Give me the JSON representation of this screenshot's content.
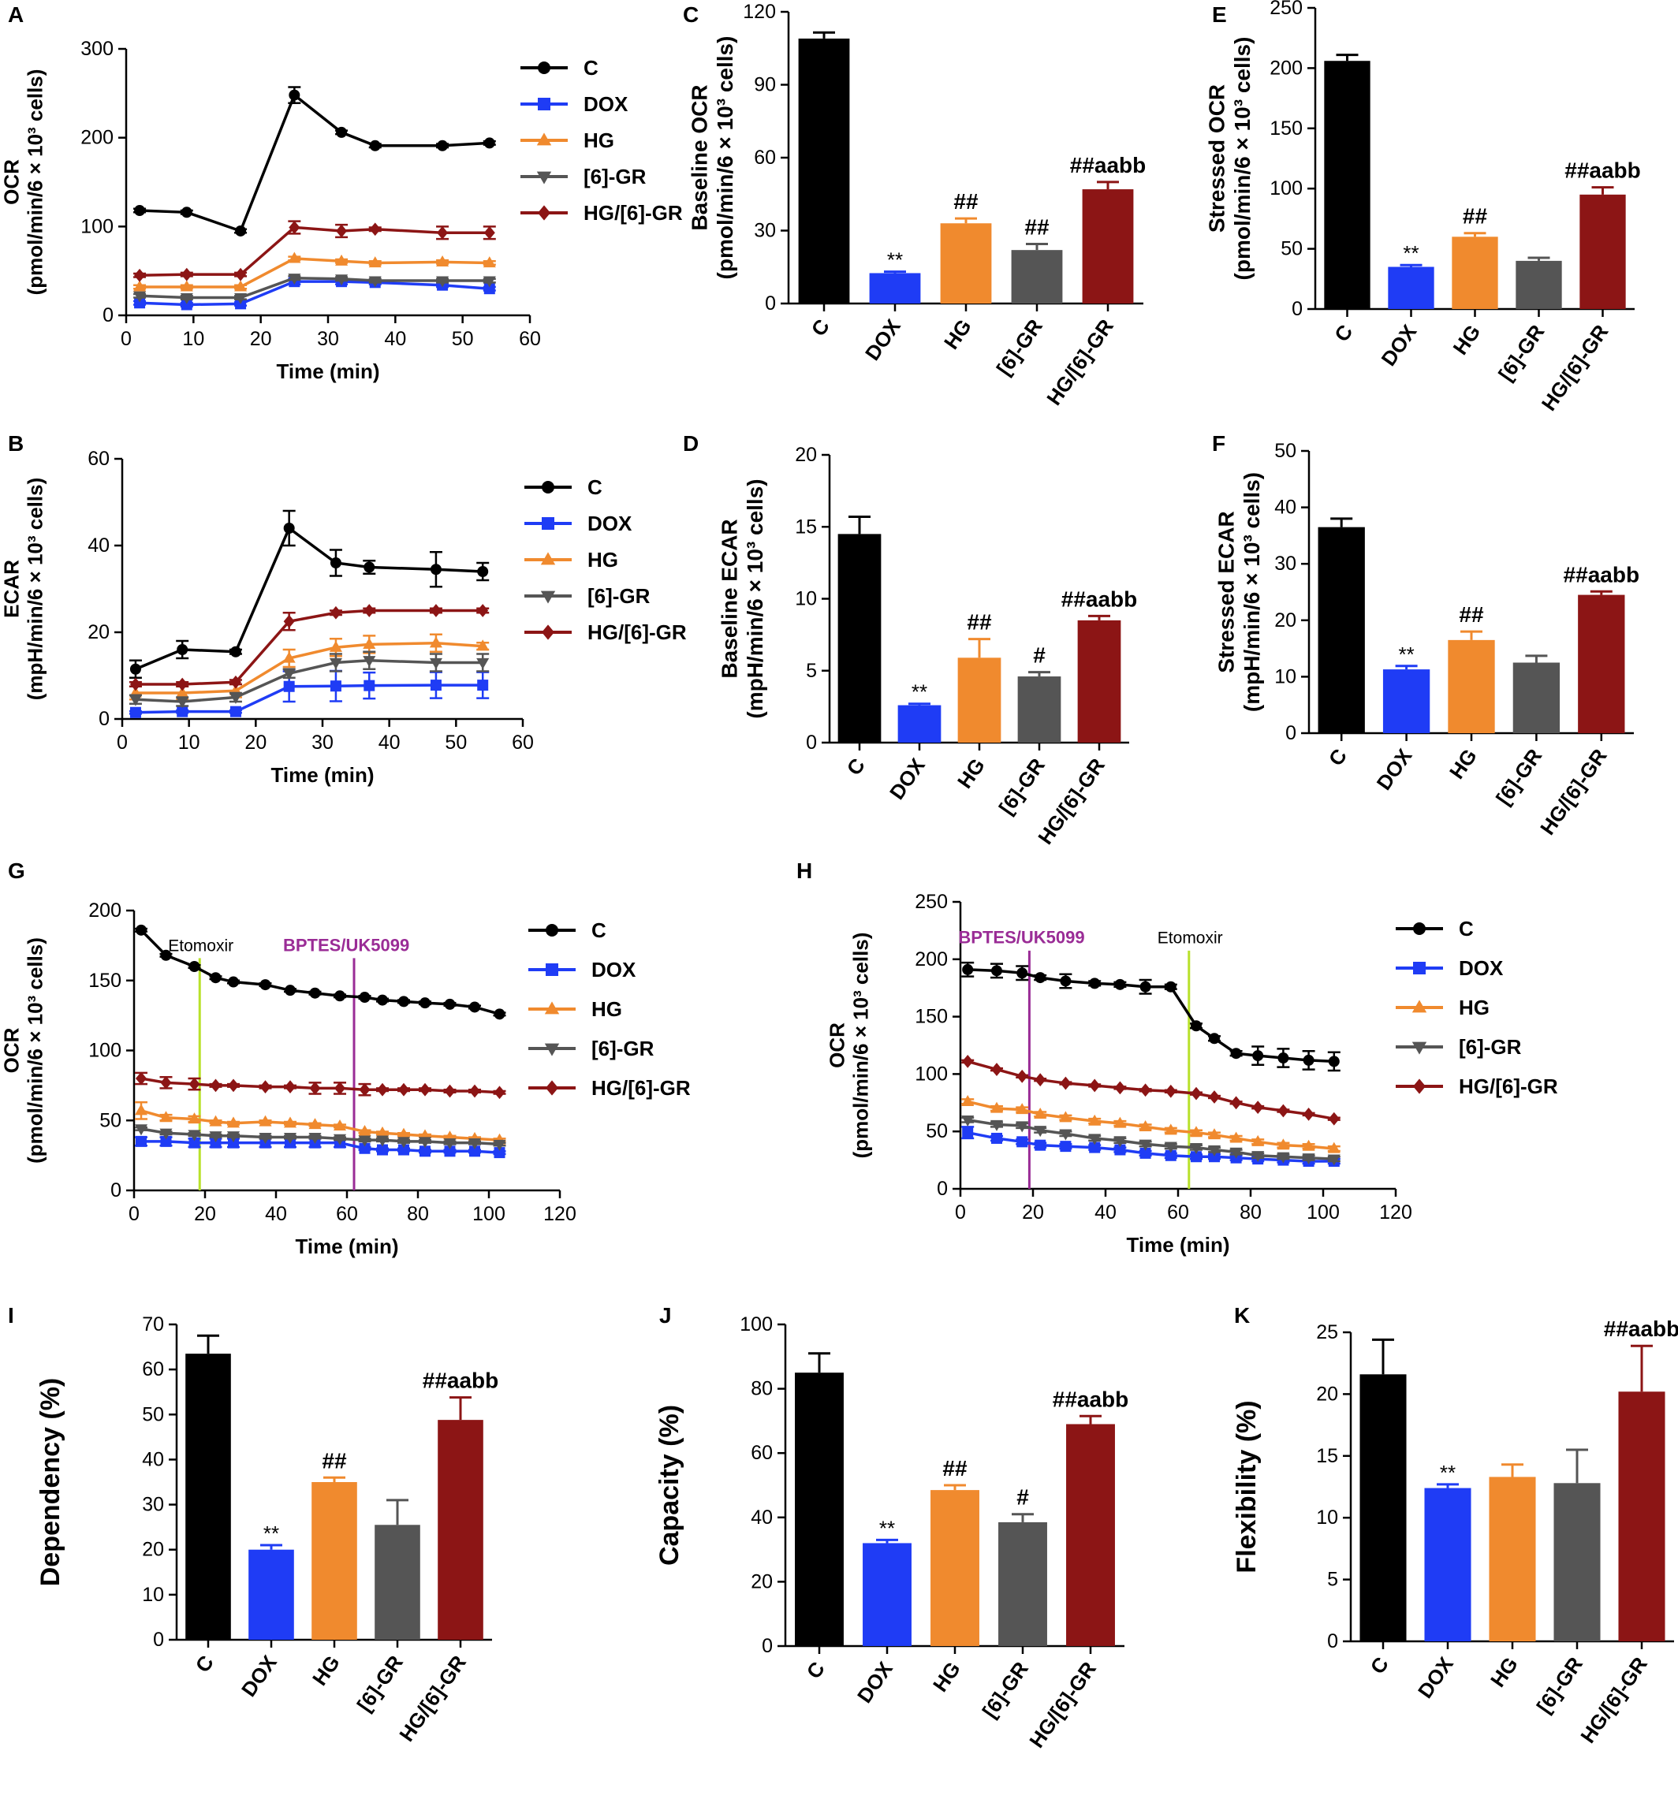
{
  "colors": {
    "C": "#000000",
    "DOX": "#1f3cf5",
    "HG": "#f08a2e",
    "[6]-GR": "#555555",
    "HG/[6]-GR": "#8c1515",
    "etomoxir_line": "#b8e12a",
    "bptes_line": "#9a2c96"
  },
  "chart_data": [
    {
      "panel": "A",
      "type": "line",
      "ylabel_lines": [
        "OCR",
        "(pmol/min/6 × 10³ cells)"
      ],
      "xlabel": "Time (min)",
      "xlim": [
        0,
        60
      ],
      "xticks": [
        0,
        10,
        20,
        30,
        40,
        50,
        60
      ],
      "ylim": [
        0,
        300
      ],
      "yticks": [
        0,
        100,
        200,
        300
      ],
      "x": [
        2,
        9,
        17,
        25,
        32,
        37,
        47,
        54
      ],
      "series": [
        {
          "name": "C",
          "marker": "circle",
          "values": [
            118,
            116,
            95,
            248,
            206,
            191,
            191,
            194
          ],
          "err": [
            2,
            2,
            2,
            9,
            2,
            2,
            2,
            2
          ]
        },
        {
          "name": "DOX",
          "marker": "square",
          "values": [
            14,
            12,
            13,
            38,
            38,
            37,
            34,
            30
          ],
          "err": [
            2,
            2,
            2,
            3,
            3,
            2,
            2,
            2
          ]
        },
        {
          "name": "HG",
          "marker": "triangle-up",
          "values": [
            32,
            32,
            32,
            64,
            61,
            59,
            60,
            59
          ],
          "err": [
            2,
            2,
            2,
            2,
            2,
            2,
            2,
            2
          ]
        },
        {
          "name": "[6]-GR",
          "marker": "triangle-down",
          "values": [
            22,
            20,
            20,
            42,
            41,
            39,
            39,
            39
          ],
          "err": [
            2,
            2,
            2,
            2,
            2,
            2,
            2,
            2
          ]
        },
        {
          "name": "HG/[6]-GR",
          "marker": "diamond",
          "values": [
            45,
            46,
            46,
            99,
            95,
            97,
            93,
            93
          ],
          "err": [
            2,
            2,
            2,
            7,
            7,
            2,
            7,
            7
          ]
        }
      ]
    },
    {
      "panel": "B",
      "type": "line",
      "ylabel_lines": [
        "ECAR",
        "(mpH/min/6 × 10³ cells)"
      ],
      "xlabel": "Time (min)",
      "xlim": [
        0,
        60
      ],
      "xticks": [
        0,
        10,
        20,
        30,
        40,
        50,
        60
      ],
      "ylim": [
        0,
        60
      ],
      "yticks": [
        0,
        20,
        40,
        60
      ],
      "x": [
        2,
        9,
        17,
        25,
        32,
        37,
        47,
        54
      ],
      "series": [
        {
          "name": "C",
          "marker": "circle",
          "values": [
            11.5,
            16,
            15.5,
            44,
            36,
            35,
            34.5,
            34
          ],
          "err": [
            2,
            2,
            0.5,
            4,
            3,
            1.5,
            4,
            2
          ]
        },
        {
          "name": "DOX",
          "marker": "square",
          "values": [
            1.5,
            1.7,
            1.7,
            7.5,
            7.6,
            7.7,
            7.8,
            7.8
          ],
          "err": [
            0.3,
            0.3,
            0.3,
            3.5,
            3.5,
            3,
            3,
            3
          ]
        },
        {
          "name": "HG",
          "marker": "triangle-up",
          "values": [
            6,
            6,
            6.5,
            14,
            16.5,
            17.2,
            17.5,
            16.8
          ],
          "err": [
            1.5,
            1.5,
            1.5,
            2,
            2,
            2,
            2,
            0.8
          ]
        },
        {
          "name": "[6]-GR",
          "marker": "triangle-down",
          "values": [
            4.5,
            4,
            5,
            10.5,
            13,
            13.5,
            13,
            13
          ],
          "err": [
            1,
            1,
            1,
            1,
            2,
            2,
            2,
            2
          ]
        },
        {
          "name": "HG/[6]-GR",
          "marker": "diamond",
          "values": [
            8,
            8,
            8.5,
            22.5,
            24.5,
            25,
            25,
            25
          ],
          "err": [
            0.5,
            0.5,
            0.5,
            2,
            0.5,
            0.5,
            0.5,
            0.5
          ]
        }
      ]
    },
    {
      "panel": "C",
      "type": "bar",
      "ylabel_lines": [
        "Baseline OCR",
        "(pmol/min/6 × 10³ cells)"
      ],
      "categories": [
        "C",
        "DOX",
        "HG",
        "[6]-GR",
        "HG/[6]-GR"
      ],
      "values": [
        109,
        12.5,
        33,
        22,
        47
      ],
      "err": [
        2.5,
        0.6,
        2,
        2.5,
        3
      ],
      "annotations": [
        "",
        "**",
        "##",
        "##",
        "##aabb"
      ],
      "ylim": [
        0,
        120
      ],
      "yticks": [
        0,
        30,
        60,
        90,
        120
      ]
    },
    {
      "panel": "D",
      "type": "bar",
      "ylabel_lines": [
        "Baseline ECAR",
        "(mpH/min/6 × 10³ cells)"
      ],
      "categories": [
        "C",
        "DOX",
        "HG",
        "[6]-GR",
        "HG/[6]-GR"
      ],
      "values": [
        14.5,
        2.6,
        5.9,
        4.6,
        8.5
      ],
      "err": [
        1.2,
        0.1,
        1.3,
        0.3,
        0.3
      ],
      "annotations": [
        "",
        "**",
        "##",
        "#",
        "##aabb"
      ],
      "ylim": [
        0,
        20
      ],
      "yticks": [
        0,
        5,
        10,
        15,
        20
      ]
    },
    {
      "panel": "E",
      "type": "bar",
      "ylabel_lines": [
        "Stressed OCR",
        "(pmol/min/6 × 10³ cells)"
      ],
      "categories": [
        "C",
        "DOX",
        "HG",
        "[6]-GR",
        "HG/[6]-GR"
      ],
      "values": [
        206,
        35,
        60,
        40,
        95
      ],
      "err": [
        5,
        1.5,
        3,
        2.5,
        6
      ],
      "annotations": [
        "",
        "**",
        "##",
        "",
        "##aabb"
      ],
      "ylim": [
        0,
        250
      ],
      "yticks": [
        0,
        50,
        100,
        150,
        200,
        250
      ]
    },
    {
      "panel": "F",
      "type": "bar",
      "ylabel_lines": [
        "Stressed ECAR",
        "(mpH/min/6 × 10³ cells)"
      ],
      "categories": [
        "C",
        "DOX",
        "HG",
        "[6]-GR",
        "HG/[6]-GR"
      ],
      "values": [
        36.5,
        11.3,
        16.5,
        12.5,
        24.5
      ],
      "err": [
        1.5,
        0.6,
        1.5,
        1.2,
        0.6
      ],
      "annotations": [
        "",
        "**",
        "##",
        "",
        "##aabb"
      ],
      "ylim": [
        0,
        50
      ],
      "yticks": [
        0,
        10,
        20,
        30,
        40,
        50
      ]
    },
    {
      "panel": "G",
      "type": "line",
      "ylabel_lines": [
        "OCR",
        "(pmol/min/6 × 10³ cells)"
      ],
      "xlabel": "Time (min)",
      "xlim": [
        0,
        120
      ],
      "xticks": [
        0,
        20,
        40,
        60,
        80,
        100,
        120
      ],
      "ylim": [
        0,
        200
      ],
      "yticks": [
        0,
        50,
        100,
        150,
        200
      ],
      "x": [
        2,
        9,
        17,
        23,
        28,
        37,
        44,
        51,
        58,
        65,
        70,
        76,
        82,
        89,
        96,
        103
      ],
      "vlines": [
        {
          "x": 18.5,
          "label": "Etomoxir",
          "color_key": "etomoxir_line"
        },
        {
          "x": 62,
          "label": "BPTES/UK5099",
          "color_key": "bptes_line"
        }
      ],
      "series": [
        {
          "name": "C",
          "marker": "circle",
          "values": [
            186,
            168,
            160,
            152,
            149,
            147,
            143,
            141,
            139,
            138,
            136,
            135,
            134,
            133,
            131,
            126
          ],
          "err": [
            1,
            1,
            1,
            1,
            1,
            1,
            1,
            1,
            1,
            1,
            1,
            1,
            1,
            1,
            1,
            1
          ]
        },
        {
          "name": "DOX",
          "marker": "square",
          "values": [
            35,
            35,
            34,
            34,
            34,
            34,
            34,
            34,
            34,
            30,
            29,
            29,
            28,
            28,
            28,
            27
          ],
          "err": [
            3,
            3,
            3,
            3,
            3,
            3,
            3,
            3,
            3,
            1,
            1,
            1,
            1,
            1,
            1,
            1
          ]
        },
        {
          "name": "HG",
          "marker": "triangle-up",
          "values": [
            57,
            52,
            51,
            49,
            48,
            49,
            48,
            47,
            46,
            42,
            41,
            40,
            39,
            38,
            37,
            36
          ],
          "err": [
            6,
            2,
            2,
            1,
            1,
            1,
            1,
            1,
            1,
            1,
            1,
            1,
            1,
            1,
            1,
            1
          ]
        },
        {
          "name": "[6]-GR",
          "marker": "triangle-down",
          "values": [
            44,
            41,
            40,
            39,
            39,
            38,
            38,
            38,
            37,
            36,
            36,
            35,
            35,
            34,
            34,
            33
          ],
          "err": [
            1,
            1,
            1,
            1,
            1,
            1,
            1,
            1,
            1,
            1,
            1,
            1,
            1,
            1,
            1,
            1
          ]
        },
        {
          "name": "HG/[6]-GR",
          "marker": "diamond",
          "values": [
            80,
            77,
            76,
            75,
            75,
            74,
            74,
            73,
            73,
            72,
            72,
            72,
            72,
            71,
            71,
            70
          ],
          "err": [
            4,
            4,
            4,
            1,
            1,
            1,
            1,
            4,
            4,
            4,
            1,
            1,
            1,
            1,
            1,
            1
          ]
        }
      ]
    },
    {
      "panel": "H",
      "type": "line",
      "ylabel_lines": [
        "OCR",
        "(pmol/min/6 × 10³ cells)"
      ],
      "xlabel": "Time (min)",
      "xlim": [
        0,
        120
      ],
      "xticks": [
        0,
        20,
        40,
        60,
        80,
        100,
        120
      ],
      "ylim": [
        0,
        250
      ],
      "yticks": [
        0,
        50,
        100,
        150,
        200,
        250
      ],
      "x": [
        2,
        10,
        17,
        22,
        29,
        37,
        44,
        51,
        58,
        65,
        70,
        76,
        82,
        89,
        96,
        103
      ],
      "vlines": [
        {
          "x": 19,
          "label": "BPTES/UK5099",
          "color_key": "bptes_line"
        },
        {
          "x": 63,
          "label": "Etomoxir",
          "color_key": "etomoxir_line"
        }
      ],
      "series": [
        {
          "name": "C",
          "marker": "circle",
          "values": [
            191,
            190,
            188,
            184,
            181,
            179,
            178,
            176,
            176,
            142,
            131,
            118,
            116,
            114,
            112,
            111
          ],
          "err": [
            6,
            6,
            6,
            2,
            6,
            2,
            2,
            6,
            2,
            2,
            2,
            2,
            8,
            8,
            8,
            8
          ]
        },
        {
          "name": "DOX",
          "marker": "square",
          "values": [
            49,
            44,
            41,
            38,
            37,
            36,
            34,
            31,
            29,
            28,
            28,
            27,
            26,
            25,
            24,
            24
          ],
          "err": [
            5,
            2,
            2,
            2,
            2,
            2,
            2,
            2,
            2,
            2,
            2,
            2,
            2,
            2,
            2,
            2
          ]
        },
        {
          "name": "HG",
          "marker": "triangle-up",
          "values": [
            76,
            70,
            69,
            65,
            62,
            59,
            57,
            54,
            51,
            49,
            47,
            44,
            41,
            38,
            37,
            35
          ],
          "err": [
            2,
            2,
            2,
            2,
            2,
            2,
            2,
            2,
            2,
            2,
            2,
            2,
            2,
            2,
            2,
            2
          ]
        },
        {
          "name": "[6]-GR",
          "marker": "triangle-down",
          "values": [
            60,
            56,
            55,
            51,
            48,
            44,
            42,
            39,
            37,
            36,
            34,
            32,
            29,
            28,
            27,
            26
          ],
          "err": [
            2,
            2,
            2,
            2,
            2,
            2,
            2,
            2,
            2,
            2,
            2,
            2,
            2,
            2,
            2,
            2
          ]
        },
        {
          "name": "HG/[6]-GR",
          "marker": "diamond",
          "values": [
            111,
            104,
            98,
            95,
            92,
            90,
            88,
            86,
            85,
            83,
            80,
            75,
            71,
            68,
            65,
            61
          ],
          "err": [
            1,
            1,
            1,
            1,
            1,
            1,
            1,
            1,
            1,
            1,
            1,
            1,
            1,
            1,
            1,
            1
          ]
        }
      ]
    },
    {
      "panel": "I",
      "type": "bar",
      "ylabel_lines": [
        "Dependency (%)"
      ],
      "categories": [
        "C",
        "DOX",
        "HG",
        "[6]-GR",
        "HG/[6]-GR"
      ],
      "values": [
        63.5,
        20,
        35,
        25.5,
        48.8
      ],
      "err": [
        4,
        1,
        1,
        5.5,
        5
      ],
      "annotations": [
        "",
        "**",
        "##",
        "",
        "##aabb"
      ],
      "ylim": [
        0,
        70
      ],
      "yticks": [
        0,
        10,
        20,
        30,
        40,
        50,
        60,
        70
      ]
    },
    {
      "panel": "J",
      "type": "bar",
      "ylabel_lines": [
        "Capacity (%)"
      ],
      "categories": [
        "C",
        "DOX",
        "HG",
        "[6]-GR",
        "HG/[6]-GR"
      ],
      "values": [
        85,
        32,
        48.5,
        38.5,
        69
      ],
      "err": [
        6,
        1,
        1.5,
        2.5,
        2.5
      ],
      "annotations": [
        "",
        "**",
        "##",
        "#",
        "##aabb"
      ],
      "ylim": [
        0,
        100
      ],
      "yticks": [
        0,
        20,
        40,
        60,
        80,
        100
      ]
    },
    {
      "panel": "K",
      "type": "bar",
      "ylabel_lines": [
        "Flexibility (%)"
      ],
      "categories": [
        "C",
        "DOX",
        "HG",
        "[6]-GR",
        "HG/[6]-GR"
      ],
      "values": [
        21.6,
        12.4,
        13.3,
        12.8,
        20.2
      ],
      "err": [
        2.8,
        0.3,
        1,
        2.7,
        3.7
      ],
      "annotations": [
        "",
        "**",
        "",
        "",
        "##aabb"
      ],
      "ylim": [
        0,
        25
      ],
      "yticks": [
        0,
        5,
        10,
        15,
        20,
        25
      ]
    }
  ]
}
